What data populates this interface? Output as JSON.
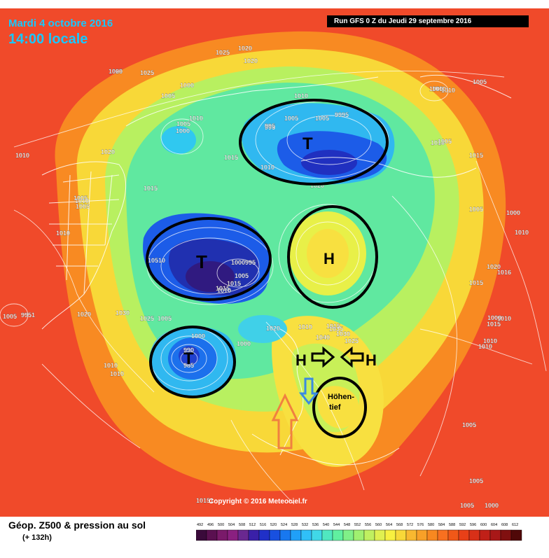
{
  "header": {
    "date": "Mardi 4 octobre 2016",
    "time": "14:00 locale",
    "run": "Run GFS 0 Z du Jeudi 29 septembre 2016"
  },
  "footer": {
    "title": "Géop. Z500 & pression au sol",
    "subtitle": "(+ 132h)",
    "copyright": "Copyright © 2016 Meteociel.fr"
  },
  "scale": {
    "labels": [
      "492",
      "496",
      "500",
      "504",
      "508",
      "512",
      "516",
      "520",
      "524",
      "528",
      "532",
      "536",
      "540",
      "544",
      "548",
      "552",
      "556",
      "560",
      "564",
      "568",
      "572",
      "576",
      "580",
      "584",
      "588",
      "592",
      "596",
      "600",
      "604",
      "608",
      "612"
    ],
    "colors": [
      "#3a0a3a",
      "#5a1050",
      "#7a1a6a",
      "#8a2080",
      "#6a2890",
      "#3a20a8",
      "#2030c8",
      "#1850e0",
      "#1878f0",
      "#20a0f8",
      "#30c0f8",
      "#40d8e8",
      "#50e8c0",
      "#60f0a0",
      "#80f088",
      "#a0f070",
      "#c0f060",
      "#e0f050",
      "#f8f040",
      "#f8d838",
      "#f8b830",
      "#f8a028",
      "#f88820",
      "#f87020",
      "#f05818",
      "#e84018",
      "#d83018",
      "#c02018",
      "#a81818",
      "#801010",
      "#500808"
    ]
  },
  "annotations": {
    "lows": [
      "T",
      "T",
      "T"
    ],
    "highs": [
      "H",
      "H",
      "H"
    ],
    "hoehentief": [
      "Höhen-",
      "tief"
    ]
  },
  "isobar_labels": [
    "1025",
    "1025",
    "1020",
    "1025",
    "1020",
    "1000",
    "1005",
    "1010",
    "1005",
    "1000",
    "995",
    "1010",
    "1020",
    "1010",
    "1015",
    "1010",
    "995",
    "1005",
    "1005",
    "9995",
    "1010",
    "1015",
    "1005",
    "1000",
    "1010",
    "1010",
    "1010",
    "1015",
    "1005",
    "1000",
    "1010",
    "1020",
    "1016",
    "1015",
    "1005",
    "1005",
    "10510",
    "1000",
    "995",
    "1005",
    "1015",
    "1020",
    "1010",
    "1015",
    "1005",
    "1030",
    "1020",
    "1025",
    "1020",
    "1035",
    "1030",
    "1040",
    "1025",
    "1000",
    "1000",
    "1000",
    "1015",
    "1010",
    "1010",
    "1010",
    "1010",
    "1005",
    "1005",
    "1005",
    "1000",
    "990",
    "985",
    "1015",
    "1010",
    "10151",
    "1005",
    "9951",
    "1005",
    "1010",
    "1010",
    "1000"
  ]
}
